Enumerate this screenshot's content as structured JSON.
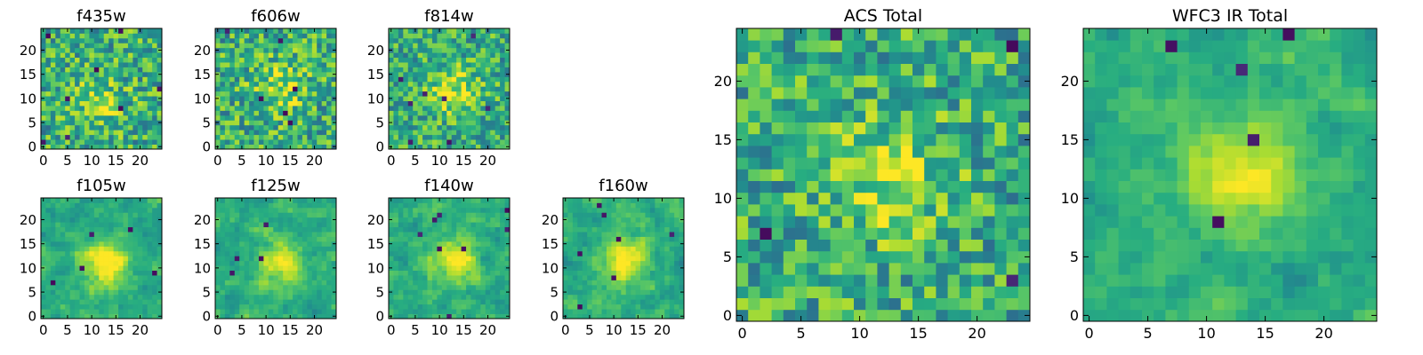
{
  "chart_data": [
    {
      "type": "heatmap",
      "title": "f435w",
      "colormap": "viridis",
      "grid_size": 25,
      "xticks": [
        0,
        5,
        10,
        15,
        20
      ],
      "yticks": [
        0,
        5,
        10,
        15,
        20
      ],
      "xlim": [
        0,
        24
      ],
      "ylim": [
        0,
        24
      ]
    },
    {
      "type": "heatmap",
      "title": "f606w",
      "colormap": "viridis",
      "grid_size": 25,
      "xticks": [
        0,
        5,
        10,
        15,
        20
      ],
      "yticks": [
        0,
        5,
        10,
        15,
        20
      ],
      "xlim": [
        0,
        24
      ],
      "ylim": [
        0,
        24
      ]
    },
    {
      "type": "heatmap",
      "title": "f814w",
      "colormap": "viridis",
      "grid_size": 25,
      "xticks": [
        0,
        5,
        10,
        15,
        20
      ],
      "yticks": [
        0,
        5,
        10,
        15,
        20
      ],
      "xlim": [
        0,
        24
      ],
      "ylim": [
        0,
        24
      ]
    },
    {
      "type": "heatmap",
      "title": "f105w",
      "colormap": "viridis",
      "grid_size": 25,
      "xticks": [
        0,
        5,
        10,
        15,
        20
      ],
      "yticks": [
        0,
        5,
        10,
        15,
        20
      ],
      "xlim": [
        0,
        24
      ],
      "ylim": [
        0,
        24
      ]
    },
    {
      "type": "heatmap",
      "title": "f125w",
      "colormap": "viridis",
      "grid_size": 25,
      "xticks": [
        0,
        5,
        10,
        15,
        20
      ],
      "yticks": [
        0,
        5,
        10,
        15,
        20
      ],
      "xlim": [
        0,
        24
      ],
      "ylim": [
        0,
        24
      ]
    },
    {
      "type": "heatmap",
      "title": "f140w",
      "colormap": "viridis",
      "grid_size": 25,
      "xticks": [
        0,
        5,
        10,
        15,
        20
      ],
      "yticks": [
        0,
        5,
        10,
        15,
        20
      ],
      "xlim": [
        0,
        24
      ],
      "ylim": [
        0,
        24
      ]
    },
    {
      "type": "heatmap",
      "title": "f160w",
      "colormap": "viridis",
      "grid_size": 25,
      "xticks": [
        0,
        5,
        10,
        15,
        20
      ],
      "yticks": [
        0,
        5,
        10,
        15,
        20
      ],
      "xlim": [
        0,
        24
      ],
      "ylim": [
        0,
        24
      ]
    },
    {
      "type": "heatmap",
      "title": "ACS Total",
      "colormap": "viridis",
      "grid_size": 25,
      "xticks": [
        0,
        5,
        10,
        15,
        20
      ],
      "yticks": [
        0,
        5,
        10,
        15,
        20
      ],
      "xlim": [
        0,
        24
      ],
      "ylim": [
        0,
        24
      ]
    },
    {
      "type": "heatmap",
      "title": "WFC3 IR Total",
      "colormap": "viridis",
      "grid_size": 25,
      "xticks": [
        0,
        5,
        10,
        15,
        20
      ],
      "yticks": [
        0,
        5,
        10,
        15,
        20
      ],
      "xlim": [
        0,
        24
      ],
      "ylim": [
        0,
        24
      ]
    }
  ]
}
